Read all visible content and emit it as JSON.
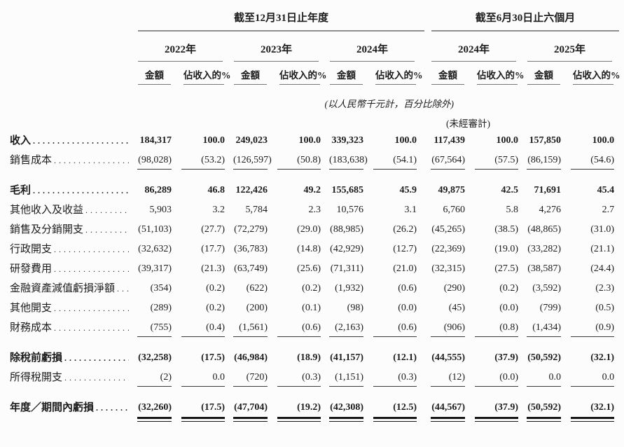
{
  "table": {
    "group_headers": [
      {
        "label": "截至12月31日止年度"
      },
      {
        "label": "截至6月30日止六個月"
      }
    ],
    "years": [
      "2022年",
      "2023年",
      "2024年",
      "2024年",
      "2025年"
    ],
    "subheaders": {
      "amount": "金額",
      "percent": "佔收入的%"
    },
    "notes": {
      "units": "(以人民幣千元計，百分比除外)",
      "unaudited": "(未經審計)"
    },
    "rows": [
      {
        "label": "收入",
        "bold": true,
        "values": [
          "184,317",
          "100.0",
          "249,023",
          "100.0",
          "339,323",
          "100.0",
          "117,439",
          "100.0",
          "157,850",
          "100.0"
        ]
      },
      {
        "label": "銷售成本",
        "rule_below": true,
        "values": [
          "(98,028)",
          "(53.2)",
          "(126,597)",
          "(50.8)",
          "(183,638)",
          "(54.1)",
          "(67,564)",
          "(57.5)",
          "(86,159)",
          "(54.6)"
        ]
      },
      {
        "label": "毛利",
        "bold": true,
        "gap_above": true,
        "values": [
          "86,289",
          "46.8",
          "122,426",
          "49.2",
          "155,685",
          "45.9",
          "49,875",
          "42.5",
          "71,691",
          "45.4"
        ]
      },
      {
        "label": "其他收入及收益",
        "values": [
          "5,903",
          "3.2",
          "5,784",
          "2.3",
          "10,576",
          "3.1",
          "6,760",
          "5.8",
          "4,276",
          "2.7"
        ]
      },
      {
        "label": "銷售及分銷開支",
        "values": [
          "(51,103)",
          "(27.7)",
          "(72,279)",
          "(29.0)",
          "(88,985)",
          "(26.2)",
          "(45,265)",
          "(38.5)",
          "(48,865)",
          "(31.0)"
        ]
      },
      {
        "label": "行政開支",
        "values": [
          "(32,632)",
          "(17.7)",
          "(36,783)",
          "(14.8)",
          "(42,929)",
          "(12.7)",
          "(22,369)",
          "(19.0)",
          "(33,282)",
          "(21.1)"
        ]
      },
      {
        "label": "研發費用",
        "values": [
          "(39,317)",
          "(21.3)",
          "(63,749)",
          "(25.6)",
          "(71,311)",
          "(21.0)",
          "(32,315)",
          "(27.5)",
          "(38,587)",
          "(24.4)"
        ]
      },
      {
        "label": "金融資產減值虧損淨額",
        "values": [
          "(354)",
          "(0.2)",
          "(622)",
          "(0.2)",
          "(1,932)",
          "(0.6)",
          "(290)",
          "(0.2)",
          "(3,592)",
          "(2.3)"
        ]
      },
      {
        "label": "其他開支",
        "values": [
          "(289)",
          "(0.2)",
          "(200)",
          "(0.1)",
          "(98)",
          "(0.0)",
          "(45)",
          "(0.0)",
          "(799)",
          "(0.5)"
        ]
      },
      {
        "label": "財務成本",
        "rule_below": true,
        "values": [
          "(755)",
          "(0.4)",
          "(1,561)",
          "(0.6)",
          "(2,163)",
          "(0.6)",
          "(906)",
          "(0.8)",
          "(1,434)",
          "(0.9)"
        ]
      },
      {
        "label": "除稅前虧損",
        "bold": true,
        "gap_above": true,
        "values": [
          "(32,258)",
          "(17.5)",
          "(46,984)",
          "(18.9)",
          "(41,157)",
          "(12.1)",
          "(44,555)",
          "(37.9)",
          "(50,592)",
          "(32.1)"
        ]
      },
      {
        "label": "所得稅開支",
        "rule_below": true,
        "values": [
          "(2)",
          "0.0",
          "(720)",
          "(0.3)",
          "(1,151)",
          "(0.3)",
          "(12)",
          "(0.0)",
          "0.0",
          "0.0"
        ]
      },
      {
        "label": "年度／期間內虧損",
        "bold": true,
        "gap_above": true,
        "double_rule_below": true,
        "values": [
          "(32,260)",
          "(17.5)",
          "(47,704)",
          "(19.2)",
          "(42,308)",
          "(12.5)",
          "(44,567)",
          "(37.9)",
          "(50,592)",
          "(32.1)"
        ]
      }
    ]
  }
}
